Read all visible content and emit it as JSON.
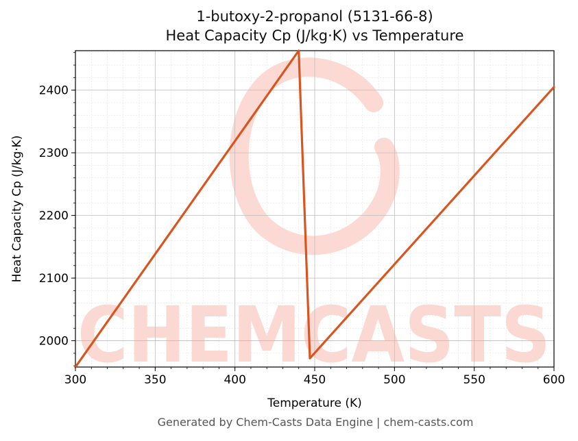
{
  "chart_data": {
    "type": "line",
    "title_line1": "1-butoxy-2-propanol (5131-66-8)",
    "title_line2": "Heat Capacity Cp (J/kg·K) vs Temperature",
    "xlabel": "Temperature (K)",
    "ylabel": "Heat Capacity Cp (J/kg·K)",
    "xlim": [
      300,
      600
    ],
    "ylim": [
      1958,
      2463
    ],
    "xticks": [
      300,
      350,
      400,
      450,
      500,
      550,
      600
    ],
    "yticks": [
      2000,
      2100,
      2200,
      2300,
      2400
    ],
    "grid": true,
    "series": [
      {
        "color": "#d9541e",
        "x": [
          300,
          440,
          447,
          600
        ],
        "y": [
          1958,
          2463,
          1972,
          2405
        ]
      }
    ]
  },
  "watermark": {
    "text": "CHEMCASTS",
    "color": "#fbd3cb"
  },
  "footer": "Generated by Chem-Casts Data Engine | chem-casts.com"
}
